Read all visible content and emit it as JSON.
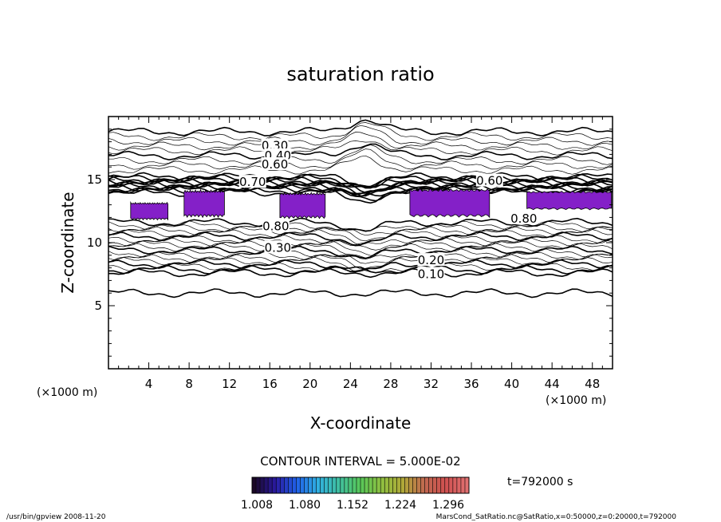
{
  "chart_data": {
    "type": "heatmap",
    "title": "saturation ratio",
    "xlabel": "X-coordinate",
    "ylabel": "Z-coordinate",
    "x_unit": "(×1000 m)",
    "y_unit": "(×1000 m)",
    "xlim": [
      0,
      50
    ],
    "ylim": [
      0,
      20
    ],
    "x_ticks": [
      4,
      8,
      12,
      16,
      20,
      24,
      28,
      32,
      36,
      40,
      44,
      48
    ],
    "y_ticks": [
      5,
      10,
      15
    ],
    "contour_labels": [
      {
        "text": "0.30",
        "x": 16.5,
        "z": 17.7
      },
      {
        "text": "0.40",
        "x": 16.8,
        "z": 16.9
      },
      {
        "text": "0.60",
        "x": 16.5,
        "z": 16.2
      },
      {
        "text": "0.70",
        "x": 14.3,
        "z": 14.8
      },
      {
        "text": "0.60",
        "x": 37.8,
        "z": 14.9
      },
      {
        "text": "0.80",
        "x": 41.2,
        "z": 11.9
      },
      {
        "text": "0.80",
        "x": 16.6,
        "z": 11.3
      },
      {
        "text": "0.30",
        "x": 16.8,
        "z": 9.6
      },
      {
        "text": "0.20",
        "x": 32.0,
        "z": 8.6
      },
      {
        "text": "0.10",
        "x": 32.0,
        "z": 7.5
      }
    ],
    "supersaturated_regions": [
      {
        "x_min": 2.2,
        "x_max": 5.9,
        "z_min": 11.8,
        "z_max": 13.2
      },
      {
        "x_min": 7.5,
        "x_max": 11.5,
        "z_min": 12.0,
        "z_max": 14.2
      },
      {
        "x_min": 17.0,
        "x_max": 21.5,
        "z_min": 11.9,
        "z_max": 14.0
      },
      {
        "x_min": 29.9,
        "x_max": 37.8,
        "z_min": 12.0,
        "z_max": 14.3
      },
      {
        "x_min": 41.5,
        "x_max": 49.9,
        "z_min": 12.6,
        "z_max": 14.1
      }
    ],
    "fill_color": "#8420c8",
    "colorbar": {
      "tick_labels": [
        "1.008",
        "1.080",
        "1.152",
        "1.224",
        "1.296"
      ],
      "colors": [
        "#1a0826",
        "#2a1aa0",
        "#2060e8",
        "#30b0e0",
        "#40c0a0",
        "#58c858",
        "#90c040",
        "#b0a838",
        "#c06850",
        "#d05050",
        "#e07070"
      ]
    },
    "contour_interval": "CONTOUR INTERVAL = 5.000E-02",
    "time_label": "t=792000 s",
    "footer_left": "/usr/bin/gpview  2008-11-20",
    "footer_right": "MarsCond_SatRatio.nc@SatRatio,x=0:50000,z=0:20000,t=792000"
  }
}
